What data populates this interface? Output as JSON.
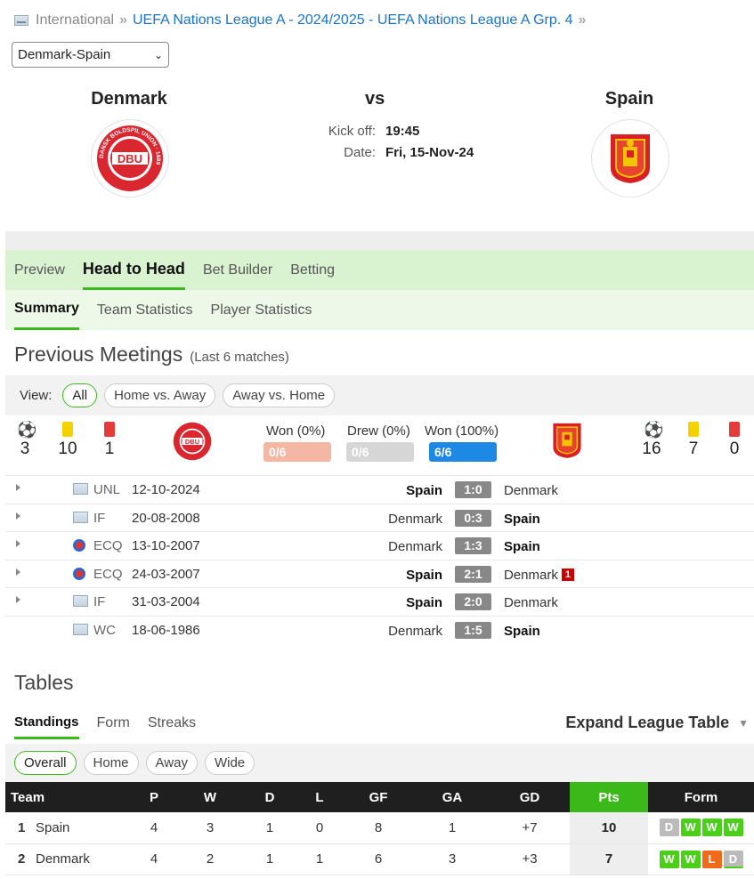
{
  "breadcrumb": {
    "root": "International",
    "path": "UEFA Nations League A - 2024/2025 - UEFA Nations League A Grp. 4"
  },
  "match_select": {
    "value": "Denmark-Spain"
  },
  "match": {
    "home": "Denmark",
    "away": "Spain",
    "vs": "vs",
    "kickoff_label": "Kick off:",
    "kickoff_value": "19:45",
    "date_label": "Date:",
    "date_value": "Fri, 15-Nov-24",
    "home_crest_text": "DBU",
    "home_crest_ring": "DANSK BOLDSPIL UNION · 1889"
  },
  "tabs_main": [
    "Preview",
    "Head to Head",
    "Bet Builder",
    "Betting"
  ],
  "tabs_sub": [
    "Summary",
    "Team Statistics",
    "Player Statistics"
  ],
  "previous_meetings": {
    "title": "Previous Meetings",
    "subtitle": "(Last 6 matches)",
    "view_label": "View:",
    "filters": [
      "All",
      "Home vs. Away",
      "Away vs. Home"
    ],
    "home_stats": {
      "goals": "3",
      "yellow": "10",
      "red": "1"
    },
    "away_stats": {
      "goals": "16",
      "yellow": "7",
      "red": "0"
    },
    "results": {
      "home_won_label": "Won (0%)",
      "home_won_value": "0/6",
      "drew_label": "Drew (0%)",
      "drew_value": "0/6",
      "away_won_label": "Won (100%)",
      "away_won_value": "6/6"
    },
    "matches": [
      {
        "comp": "UNL",
        "date": "12-10-2024",
        "home": "Spain",
        "score": "1:0",
        "away": "Denmark",
        "winner": "home",
        "expand": true,
        "flag": "fifa"
      },
      {
        "comp": "IF",
        "date": "20-08-2008",
        "home": "Denmark",
        "score": "0:3",
        "away": "Spain",
        "winner": "away",
        "expand": true,
        "flag": "fifa"
      },
      {
        "comp": "ECQ",
        "date": "13-10-2007",
        "home": "Denmark",
        "score": "1:3",
        "away": "Spain",
        "winner": "away",
        "expand": true,
        "flag": "euro"
      },
      {
        "comp": "ECQ",
        "date": "24-03-2007",
        "home": "Spain",
        "score": "2:1",
        "away": "Denmark",
        "winner": "home",
        "expand": true,
        "flag": "euro",
        "away_red": "1"
      },
      {
        "comp": "IF",
        "date": "31-03-2004",
        "home": "Spain",
        "score": "2:0",
        "away": "Denmark",
        "winner": "home",
        "expand": true,
        "flag": "fifa"
      },
      {
        "comp": "WC",
        "date": "18-06-1986",
        "home": "Denmark",
        "score": "1:5",
        "away": "Spain",
        "winner": "away",
        "expand": false,
        "flag": "fifa"
      }
    ]
  },
  "tables": {
    "title": "Tables",
    "tabs": [
      "Standings",
      "Form",
      "Streaks"
    ],
    "expand_label": "Expand League Table",
    "filters": [
      "Overall",
      "Home",
      "Away",
      "Wide"
    ],
    "headers": [
      "Team",
      "P",
      "W",
      "D",
      "L",
      "GF",
      "GA",
      "GD",
      "Pts",
      "Form"
    ],
    "rows": [
      {
        "pos": "1",
        "team": "Spain",
        "p": "4",
        "w": "3",
        "d": "1",
        "l": "0",
        "gf": "8",
        "ga": "1",
        "gd": "+7",
        "pts": "10",
        "form": [
          "D",
          "W",
          "W",
          "W"
        ]
      },
      {
        "pos": "2",
        "team": "Denmark",
        "p": "4",
        "w": "2",
        "d": "1",
        "l": "1",
        "gf": "6",
        "ga": "3",
        "gd": "+3",
        "pts": "7",
        "form": [
          "W",
          "W",
          "L",
          "D"
        ]
      }
    ]
  },
  "colors": {
    "accent_green": "#3cb91a",
    "link_blue": "#1a73c7",
    "home_bar": "#f3b7a3",
    "draw_bar": "#d6d6d6",
    "away_bar": "#1e88e5"
  }
}
